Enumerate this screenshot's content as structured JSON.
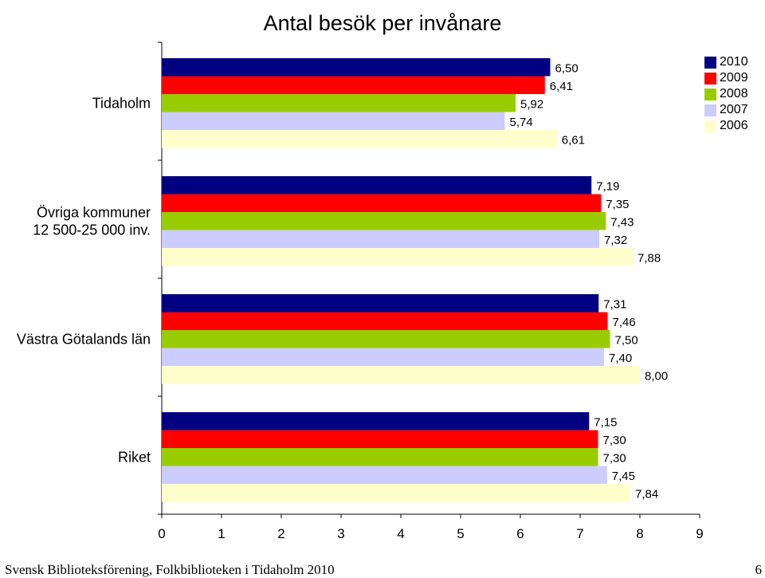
{
  "chart_data": {
    "type": "bar",
    "orientation": "horizontal",
    "title": "Antal besök per invånare",
    "categories": [
      "Tidaholm",
      "Övriga kommuner 12 500-25 000 inv.",
      "Västra Götalands län",
      "Riket"
    ],
    "category_label_lines": [
      [
        "Tidaholm"
      ],
      [
        "Övriga kommuner",
        "12 500-25 000 inv."
      ],
      [
        "Västra Götalands län"
      ],
      [
        "Riket"
      ]
    ],
    "series": [
      {
        "name": "2010",
        "color": "#000080",
        "values": [
          6.5,
          7.19,
          7.31,
          7.15
        ],
        "labels": [
          "6,50",
          "7,19",
          "7,31",
          "7,15"
        ]
      },
      {
        "name": "2009",
        "color": "#ff0000",
        "values": [
          6.41,
          7.35,
          7.46,
          7.3
        ],
        "labels": [
          "6,41",
          "7,35",
          "7,46",
          "7,30"
        ]
      },
      {
        "name": "2008",
        "color": "#99cc00",
        "values": [
          5.92,
          7.43,
          7.5,
          7.3
        ],
        "labels": [
          "5,92",
          "7,43",
          "7,50",
          "7,30"
        ]
      },
      {
        "name": "2007",
        "color": "#ccccff",
        "values": [
          5.74,
          7.32,
          7.4,
          7.45
        ],
        "labels": [
          "5,74",
          "7,32",
          "7,40",
          "7,45"
        ]
      },
      {
        "name": "2006",
        "color": "#ffffcc",
        "values": [
          6.61,
          7.88,
          8.0,
          7.84
        ],
        "labels": [
          "6,61",
          "7,88",
          "8,00",
          "7,84"
        ]
      }
    ],
    "xlim": [
      0,
      9
    ],
    "xticks": [
      "0",
      "1",
      "2",
      "3",
      "4",
      "5",
      "6",
      "7",
      "8",
      "9"
    ],
    "grid": false,
    "legend_position": "top-right"
  },
  "footer": {
    "left": "Svensk Biblioteksförening, Folkbiblioteken i Tidaholm 2010",
    "right": "6"
  }
}
